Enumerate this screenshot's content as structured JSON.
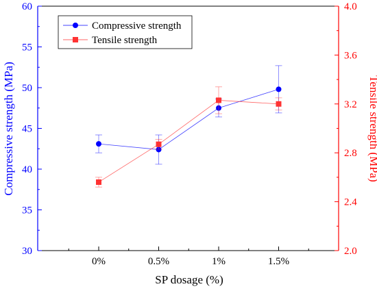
{
  "chart_data": {
    "type": "line",
    "categories": [
      "0%",
      "0.5%",
      "1%",
      "1.5%"
    ],
    "xlabel": "SP dosage (%)",
    "legend_position": "top-left",
    "grid": false,
    "y_left": {
      "label": "Compressive strength (MPa)",
      "range": [
        30,
        60
      ],
      "ticks": [
        30,
        35,
        40,
        45,
        50,
        55,
        60
      ],
      "tick_labels": [
        "30",
        "35",
        "40",
        "45",
        "50",
        "55",
        "60"
      ],
      "color": "#0000ff"
    },
    "y_right": {
      "label": "Tensile strength (MPa)",
      "range": [
        2.0,
        4.0
      ],
      "ticks": [
        2.0,
        2.4,
        2.8,
        3.2,
        3.6,
        4.0
      ],
      "tick_labels": [
        "2.0",
        "2.4",
        "2.8",
        "3.2",
        "3.6",
        "4.0"
      ],
      "color": "#ff0000"
    },
    "series": [
      {
        "name": "Compressive strength",
        "axis": "left",
        "marker": "circle",
        "color": "#0000ff",
        "values": [
          43.1,
          42.4,
          47.5,
          49.8
        ],
        "errors": [
          1.1,
          1.8,
          1.1,
          2.9
        ]
      },
      {
        "name": "Tensile strength",
        "axis": "right",
        "marker": "square",
        "color": "#ff3333",
        "values": [
          2.56,
          2.87,
          3.23,
          3.2
        ],
        "errors": [
          0.04,
          0.04,
          0.11,
          0.05
        ]
      }
    ]
  }
}
